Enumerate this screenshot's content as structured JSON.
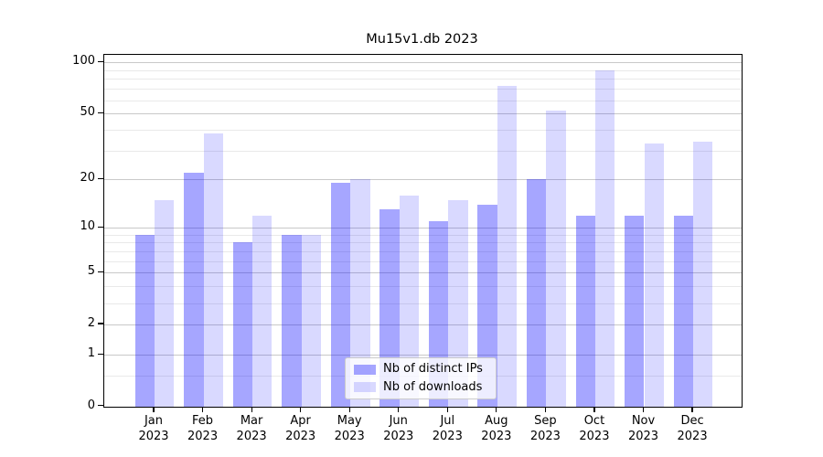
{
  "title": "Mu15v1.db 2023",
  "chart_data": {
    "type": "bar",
    "title": "Mu15v1.db 2023",
    "categories": [
      "Jan 2023",
      "Feb 2023",
      "Mar 2023",
      "Apr 2023",
      "May 2023",
      "Jun 2023",
      "Jul 2023",
      "Aug 2023",
      "Sep 2023",
      "Oct 2023",
      "Nov 2023",
      "Dec 2023"
    ],
    "series": [
      {
        "name": "Nb of distinct IPs",
        "fill": "rgba(0,0,255,0.35)",
        "values": [
          9,
          22,
          8,
          9,
          19,
          13,
          11,
          14,
          20,
          12,
          12,
          12
        ]
      },
      {
        "name": "Nb of downloads",
        "fill": "rgba(0,0,255,0.15)",
        "values": [
          15,
          38,
          12,
          9,
          20,
          16,
          15,
          73,
          52,
          90,
          33,
          34
        ]
      }
    ],
    "xlabel": "",
    "ylabel": "",
    "yscale": "log1p",
    "ylim": [
      0,
      111
    ],
    "y_major_ticks": [
      100,
      50,
      20,
      10,
      5,
      2,
      1,
      0
    ],
    "y_minor_ticks": [
      0.5,
      3,
      4,
      6,
      7,
      8,
      9,
      30,
      40,
      60,
      70,
      80,
      90
    ],
    "grid": true,
    "legend_position": "lower center, inside plot"
  }
}
